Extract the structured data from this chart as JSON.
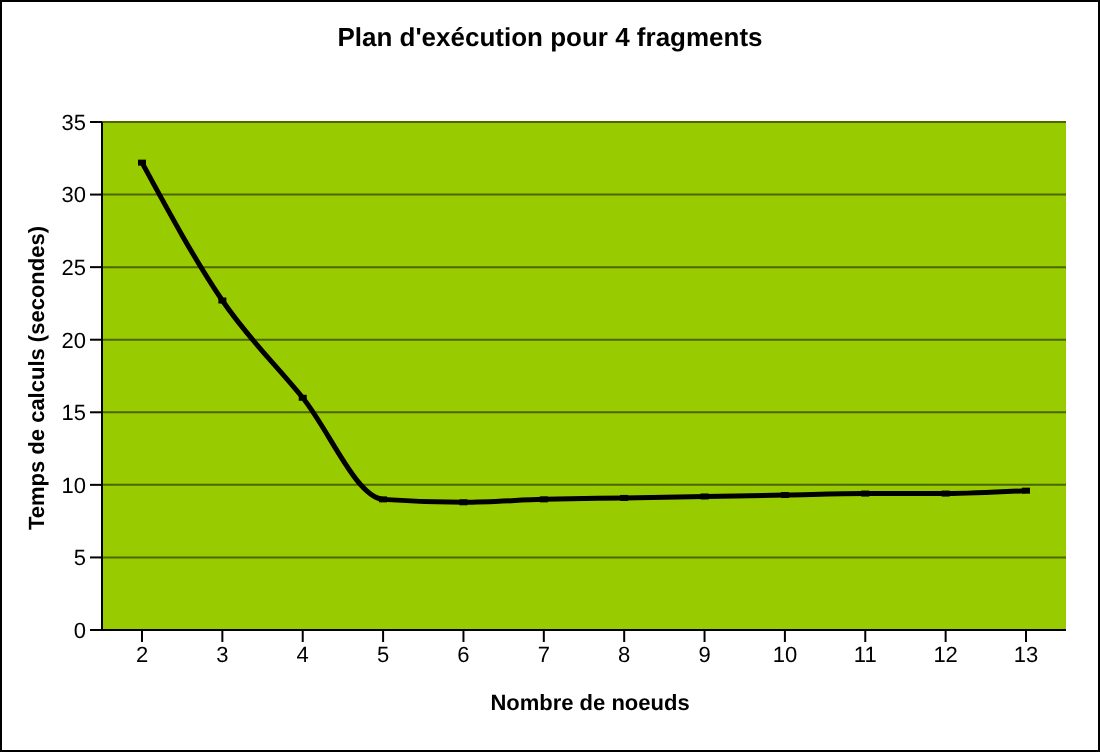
{
  "chart_data": {
    "type": "line",
    "title": "Plan d'exécution pour 4 fragments",
    "xlabel": "Nombre de noeuds",
    "ylabel": "Temps de calculs (secondes)",
    "categories": [
      "2",
      "3",
      "4",
      "5",
      "6",
      "7",
      "8",
      "9",
      "10",
      "11",
      "12",
      "13"
    ],
    "series": [
      {
        "color": "#000000",
        "values": [
          32.2,
          22.7,
          16,
          9,
          8.8,
          9.0,
          9.1,
          9.2,
          9.3,
          9.4,
          9.4,
          9.6
        ]
      }
    ],
    "ylim": [
      0,
      35
    ],
    "yticks": [
      0,
      5,
      10,
      15,
      20,
      25,
      30,
      35
    ],
    "grid": "y",
    "legend": false,
    "marker": "square",
    "line_style": "solid"
  }
}
